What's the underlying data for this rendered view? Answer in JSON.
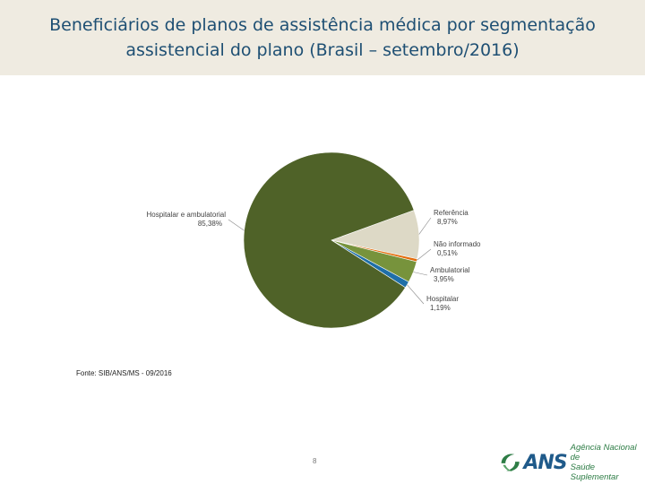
{
  "header": {
    "title_line1": "Beneficiários de planos de assistência médica por segmentação",
    "title_line2": "assistencial do plano (Brasil – setembro/2016)"
  },
  "chart_data": {
    "type": "pie",
    "slices": [
      {
        "label": "Referência",
        "value_label": "8,97%",
        "value": 8.97,
        "color": "#ddd9c6"
      },
      {
        "label": "Não informado",
        "value_label": "0,51%",
        "value": 0.51,
        "color": "#e46c0a"
      },
      {
        "label": "Ambulatorial",
        "value_label": "3,95%",
        "value": 3.95,
        "color": "#77933c"
      },
      {
        "label": "Hospitalar",
        "value_label": "1,19%",
        "value": 1.19,
        "color": "#1f6fa8"
      },
      {
        "label": "Hospitalar e ambulatorial",
        "value_label": "85,38%",
        "value": 85.38,
        "color": "#4f6228"
      }
    ]
  },
  "source": "Fonte: SIB/ANS/MS - 09/2016",
  "page_number": "8",
  "logo": {
    "wordmark": "ANS",
    "tagline_line1": "Agência Nacional de",
    "tagline_line2": "Saúde Suplementar"
  }
}
